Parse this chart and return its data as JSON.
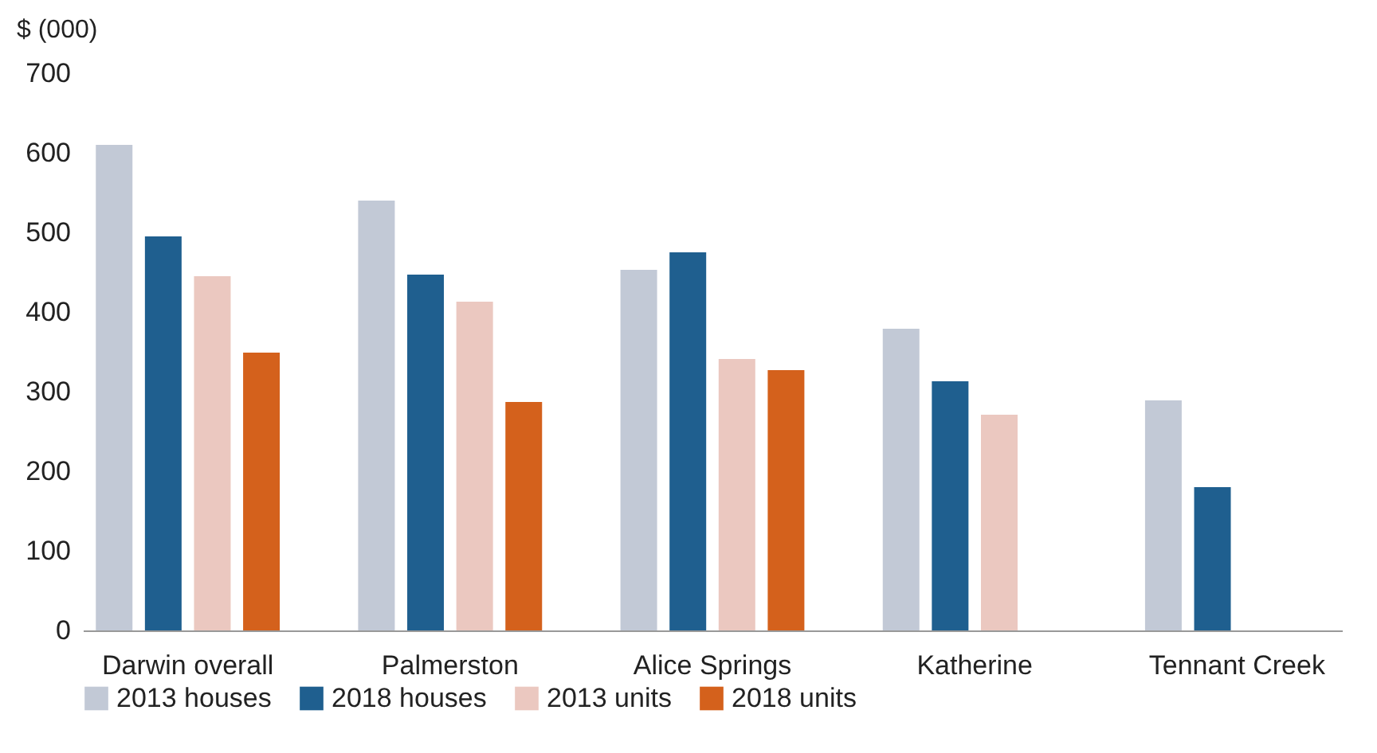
{
  "chart_data": {
    "type": "bar",
    "ylabel": "$ (000)",
    "categories": [
      "Darwin overall",
      "Palmerston",
      "Alice Springs",
      "Katherine",
      "Tennant Creek"
    ],
    "series": [
      {
        "name": "2013 houses",
        "color": "#c2c9d6",
        "values": [
          610,
          540,
          453,
          379,
          289
        ]
      },
      {
        "name": "2018 houses",
        "color": "#1f5f8f",
        "values": [
          495,
          447,
          475,
          313,
          180
        ]
      },
      {
        "name": "2013 units",
        "color": "#ebc8c0",
        "values": [
          445,
          413,
          341,
          271,
          null
        ]
      },
      {
        "name": "2018 units",
        "color": "#d4611c",
        "values": [
          349,
          287,
          327,
          null,
          null
        ]
      }
    ],
    "ylim": [
      0,
      700
    ],
    "yticks": [
      0,
      100,
      200,
      300,
      400,
      500,
      600,
      700
    ],
    "grid": false,
    "legend": "bottom"
  }
}
